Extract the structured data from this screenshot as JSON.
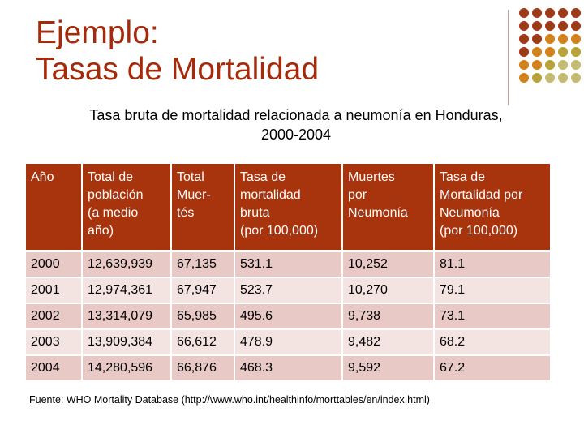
{
  "colors": {
    "title": "#a52a0a",
    "header_bg": "#a8340e",
    "row_odd": "#e8c9c6",
    "row_even": "#f3e3e1",
    "vline": "#c9a089",
    "dot_dark": "#9e3a1a",
    "dot_orange": "#d2831c",
    "dot_olive": "#b8a23a",
    "dot_light": "#c4bb72"
  },
  "title": {
    "line1": "Ejemplo:",
    "line2": "Tasas de Mortalidad"
  },
  "subtitle": {
    "line1": "Tasa bruta de mortalidad relacionada a neumonía en Honduras,",
    "line2": "2000-2004"
  },
  "table": {
    "headers": [
      [
        "Año"
      ],
      [
        "Total de",
        "población",
        "(a medio",
        "año)"
      ],
      [
        "Total",
        "Muer-",
        "tés"
      ],
      [
        "Tasa  de",
        "mortalidad",
        "bruta",
        "(por 100,000)"
      ],
      [
        "Muertes",
        "por",
        "Neumonía"
      ],
      [
        "Tasa de",
        "Mortalidad por",
        "Neumonía",
        "(por 100,000)"
      ]
    ],
    "rows": [
      [
        "2000",
        "12,639,939",
        "67,135",
        "531.1",
        "10,252",
        "81.1"
      ],
      [
        "2001",
        "12,974,361",
        "67,947",
        "523.7",
        "10,270",
        "79.1"
      ],
      [
        "2002",
        "13,314,079",
        "65,985",
        "495.6",
        "9,738",
        "73.1"
      ],
      [
        "2003",
        "13,909,384",
        "66,612",
        "478.9",
        "9,482",
        "68.2"
      ],
      [
        "2004",
        "14,280,596",
        "66,876",
        "468.3",
        "9,592",
        "67.2"
      ]
    ]
  },
  "source": "Fuente: WHO Mortality Database (http://www.who.int/healthinfo/morttables/en/index.html)"
}
